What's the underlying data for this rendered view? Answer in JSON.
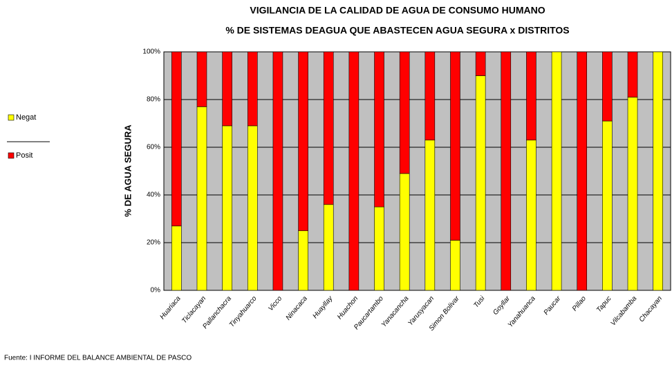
{
  "chart_data": {
    "type": "stacked_bar",
    "title": "VIGILANCIA DE LA CALIDAD DE AGUA DE CONSUMO HUMANO",
    "subtitle": "% DE SISTEMAS DEAGUA QUE ABASTECEN AGUA SEGURA x DISTRITOS",
    "y_label": "% DE AGUA SEGURA",
    "source": "Fuente: I INFORME DEL BALANCE AMBIENTAL DE PASCO",
    "categories": [
      "Huariaca",
      "Ticlacayan",
      "Pallanchacra",
      "Tinyahuarco",
      "Vicco",
      "Ninacaca",
      "Huayllay",
      "Huachon",
      "Paucartambo",
      "Yanacancha",
      "Yarusyacan",
      "Simon Bolivar",
      "Tusi",
      "Goyllar",
      "Yanahuanca",
      "Paucar",
      "Pillao",
      "Tapuc",
      "Vilcabamba",
      "Chacayan"
    ],
    "series": [
      {
        "name": "Negat",
        "color": "#ffff00",
        "values": [
          27,
          77,
          69,
          69,
          0,
          25,
          36,
          0,
          35,
          49,
          63,
          21,
          90,
          0,
          63,
          100,
          0,
          71,
          81,
          100
        ]
      },
      {
        "name": "Posit",
        "color": "#ff0000",
        "values": [
          73,
          23,
          31,
          31,
          100,
          75,
          64,
          100,
          65,
          51,
          37,
          79,
          10,
          100,
          37,
          0,
          100,
          29,
          19,
          0
        ]
      }
    ],
    "ylim": [
      0,
      100
    ],
    "yticks": [
      {
        "value": 0,
        "label": "0%"
      },
      {
        "value": 20,
        "label": "20%"
      },
      {
        "value": 40,
        "label": "40%"
      },
      {
        "value": 60,
        "label": "60%"
      },
      {
        "value": 80,
        "label": "80%"
      },
      {
        "value": 100,
        "label": "100%"
      }
    ],
    "grid": true,
    "legend": "left",
    "background": "#c0c0c0"
  }
}
